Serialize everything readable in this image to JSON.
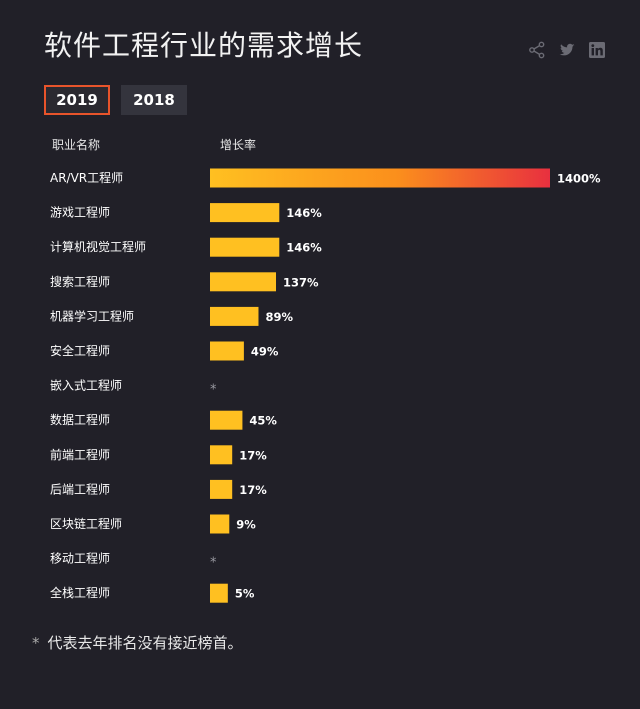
{
  "title": "软件工程行业的需求增长",
  "share": {
    "icons": [
      "share-icon",
      "twitter-icon",
      "linkedin-icon"
    ]
  },
  "year_tabs": [
    {
      "label": "2019",
      "active": true
    },
    {
      "label": "2018",
      "active": false
    }
  ],
  "headers": {
    "name": "职业名称",
    "rate": "增长率"
  },
  "footnote": {
    "star": "*",
    "text": "代表去年排名没有接近榜首。"
  },
  "colors": {
    "bar_start": "#ffc021",
    "bar_top_end": "#e8303f",
    "accent_border": "#e8542b"
  },
  "chart_data": {
    "type": "bar",
    "orientation": "horizontal",
    "categories": [
      "AR/VR工程师",
      "游戏工程师",
      "计算机视觉工程师",
      "搜索工程师",
      "机器学习工程师",
      "安全工程师",
      "嵌入式工程师",
      "数据工程师",
      "前端工程师",
      "后端工程师",
      "区块链工程师",
      "移动工程师",
      "全栈工程师"
    ],
    "values": [
      1400,
      146,
      146,
      137,
      89,
      49,
      null,
      45,
      17,
      17,
      9,
      null,
      5
    ],
    "labels": [
      "1400%",
      "146%",
      "146%",
      "137%",
      "89%",
      "49%",
      "*",
      "45%",
      "17%",
      "17%",
      "9%",
      "*",
      "5%"
    ],
    "unit": "%"
  }
}
